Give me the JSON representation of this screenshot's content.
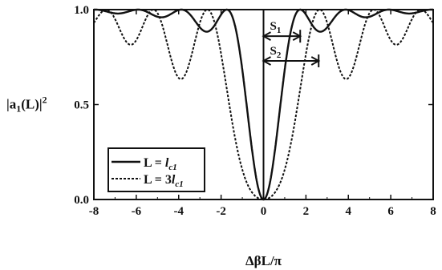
{
  "chart_data": {
    "type": "line",
    "ylabel_main": "|a",
    "ylabel_sub1": "1",
    "ylabel_mid": "(L)|",
    "ylabel_sup": "2",
    "xlabel": "ΔβL/π",
    "xlim": [
      -8,
      8
    ],
    "ylim": [
      0,
      1
    ],
    "xticks": [
      -8,
      -6,
      -4,
      -2,
      0,
      2,
      4,
      6,
      8
    ],
    "yticks": [
      0,
      0.5,
      1
    ],
    "ytick_labels": [
      "0.0",
      "0.5",
      "1.0"
    ],
    "series": [
      {
        "name": "L = l_c1",
        "legend_prefix": "L = ",
        "legend_var": "l",
        "legend_sub": "c1",
        "style": "solid",
        "coupling_ratio": 1
      },
      {
        "name": "L = 3l_c1",
        "legend_prefix": "L = 3",
        "legend_var": "l",
        "legend_sub": "c1",
        "style": "dashed",
        "coupling_ratio": 3
      }
    ],
    "annotations": [
      {
        "label": "S",
        "sub": "1",
        "x_from": 0,
        "x_to": 1.73
      },
      {
        "label": "S",
        "sub": "2",
        "x_from": 0,
        "x_to": 2.6
      }
    ]
  }
}
